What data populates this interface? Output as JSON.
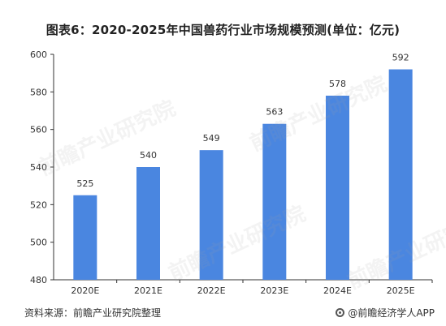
{
  "title": "图表6：2020-2025年中国兽药行业市场规模预测(单位：亿元)",
  "source": "资料来源：前瞻产业研究院整理",
  "brand": "@前瞻经济学人APP",
  "watermark": "前瞻产业研究院",
  "colors": {
    "bar": "#4a86e0",
    "axis": "#333333",
    "text": "#333333"
  },
  "chart_data": {
    "type": "bar",
    "title": "图表6：2020-2025年中国兽药行业市场规模预测(单位：亿元)",
    "categories": [
      "2020E",
      "2021E",
      "2022E",
      "2023E",
      "2024E",
      "2025E"
    ],
    "values": [
      525,
      540,
      549,
      563,
      578,
      592
    ],
    "ylim": [
      480,
      600
    ],
    "yticks": [
      480,
      500,
      520,
      540,
      560,
      580,
      600
    ],
    "xlabel": "",
    "ylabel": "",
    "grid": false,
    "data_labels": true
  }
}
